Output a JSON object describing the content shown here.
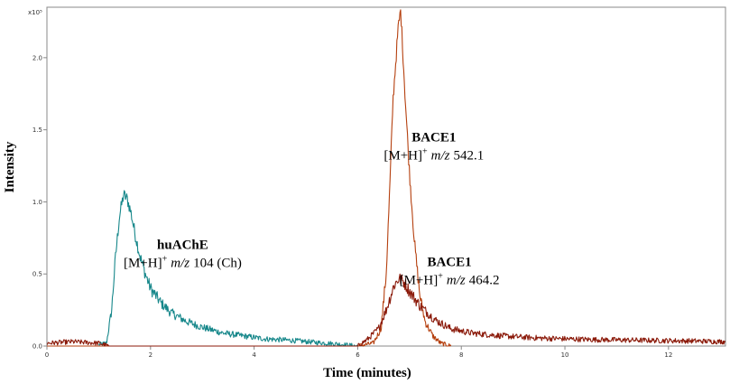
{
  "chart_data": {
    "type": "line",
    "title": "",
    "xlabel": "Time (minutes)",
    "ylabel": "Intensity",
    "y_exponent_label": "x10⁵",
    "xlim": [
      0,
      13.1
    ],
    "ylim": [
      0,
      2.35
    ],
    "x_ticks": [
      "0",
      "2",
      "4",
      "6",
      "8",
      "10",
      "12"
    ],
    "y_ticks": [
      "0.0",
      "0.5",
      "1.0",
      "1.5",
      "2.0"
    ],
    "grid": false,
    "colors": {
      "teal": "#16878a",
      "orange": "#b5400f",
      "darkred": "#8b1a0a",
      "frame": "#888888"
    },
    "series": [
      {
        "color": "#16878a",
        "points": [
          [
            1.0,
            0.01
          ],
          [
            1.15,
            0.02
          ],
          [
            1.25,
            0.25
          ],
          [
            1.32,
            0.6
          ],
          [
            1.4,
            0.9
          ],
          [
            1.48,
            1.05
          ],
          [
            1.55,
            1.02
          ],
          [
            1.62,
            0.93
          ],
          [
            1.7,
            0.78
          ],
          [
            1.8,
            0.62
          ],
          [
            1.9,
            0.5
          ],
          [
            2.0,
            0.4
          ],
          [
            2.2,
            0.3
          ],
          [
            2.4,
            0.23
          ],
          [
            2.7,
            0.17
          ],
          [
            3.0,
            0.13
          ],
          [
            3.4,
            0.09
          ],
          [
            3.8,
            0.07
          ],
          [
            4.2,
            0.05
          ],
          [
            4.7,
            0.04
          ],
          [
            5.2,
            0.025
          ],
          [
            5.6,
            0.015
          ],
          [
            6.0,
            0.0
          ]
        ]
      },
      {
        "color": "#b5400f",
        "points": [
          [
            0.0,
            0.0
          ],
          [
            6.0,
            0.0
          ],
          [
            6.3,
            0.02
          ],
          [
            6.45,
            0.12
          ],
          [
            6.55,
            0.5
          ],
          [
            6.62,
            1.1
          ],
          [
            6.68,
            1.7
          ],
          [
            6.73,
            1.95
          ],
          [
            6.78,
            2.2
          ],
          [
            6.83,
            2.33
          ],
          [
            6.87,
            2.05
          ],
          [
            6.92,
            1.7
          ],
          [
            7.0,
            1.2
          ],
          [
            7.1,
            0.7
          ],
          [
            7.2,
            0.35
          ],
          [
            7.3,
            0.17
          ],
          [
            7.45,
            0.07
          ],
          [
            7.6,
            0.02
          ],
          [
            7.8,
            0.0
          ]
        ]
      },
      {
        "color": "#8b1a0a",
        "points": [
          [
            0.0,
            0.02
          ],
          [
            0.5,
            0.03
          ],
          [
            1.0,
            0.02
          ],
          [
            1.2,
            0.0
          ],
          [
            6.0,
            0.0
          ],
          [
            6.2,
            0.05
          ],
          [
            6.4,
            0.12
          ],
          [
            6.55,
            0.25
          ],
          [
            6.7,
            0.42
          ],
          [
            6.8,
            0.47
          ],
          [
            6.9,
            0.44
          ],
          [
            7.0,
            0.38
          ],
          [
            7.2,
            0.28
          ],
          [
            7.5,
            0.18
          ],
          [
            7.8,
            0.12
          ],
          [
            8.2,
            0.09
          ],
          [
            8.8,
            0.07
          ],
          [
            9.5,
            0.055
          ],
          [
            10.5,
            0.045
          ],
          [
            11.5,
            0.04
          ],
          [
            12.5,
            0.035
          ],
          [
            13.1,
            0.03
          ]
        ]
      }
    ],
    "annotations": [
      {
        "id": "huache",
        "x": 2.62,
        "y": 0.675,
        "bold": "huAChE",
        "formula_prefix": "[M+H]",
        "sup": "+",
        "mz": "m/z",
        "value": "104 (Ch)"
      },
      {
        "id": "bace1_542",
        "x": 7.47,
        "y": 1.42,
        "bold": "BACE1",
        "formula_prefix": "[M+H]",
        "sup": "+",
        "mz": "m/z",
        "value": "542.1"
      },
      {
        "id": "bace1_464",
        "x": 7.77,
        "y": 0.555,
        "bold": "BACE1",
        "formula_prefix": "[M+H]",
        "sup": "+",
        "mz": "m/z",
        "value": "464.2"
      }
    ]
  }
}
